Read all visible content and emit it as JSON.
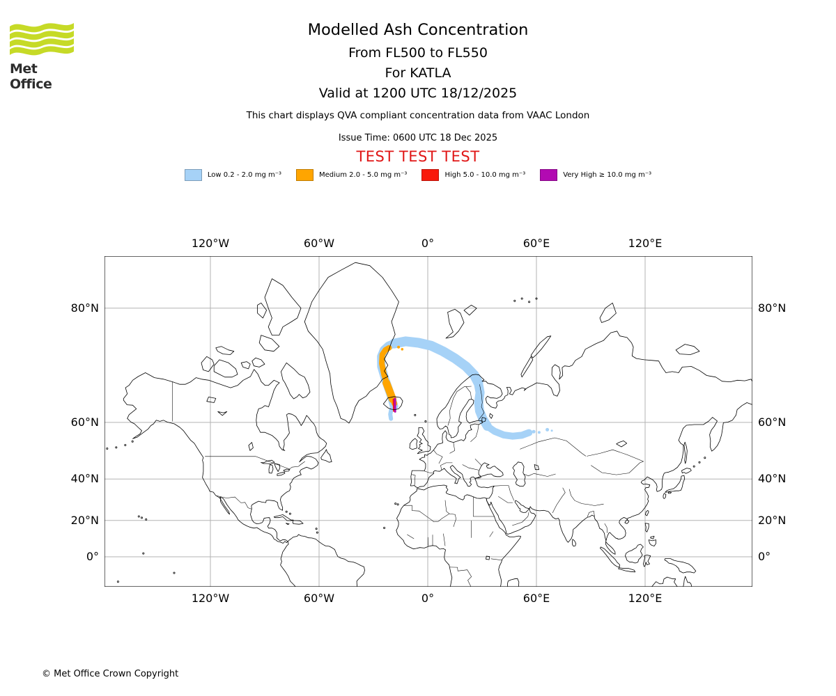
{
  "header": {
    "logo_text": "Met Office",
    "logo_color": "#c6da27",
    "title": "Modelled Ash Concentration",
    "flight_levels": "From FL500 to FL550",
    "volcano_line": "For KATLA",
    "valid_line": "Valid at 1200 UTC 18/12/2025",
    "note": "This chart displays QVA compliant concentration data from VAAC London",
    "issue_time": "Issue Time: 0600 UTC 18 Dec 2025",
    "test_banner": "TEST TEST TEST",
    "test_banner_color": "#e01616"
  },
  "legend": {
    "items": [
      {
        "level": "Low",
        "label": "Low 0.2 - 2.0 mg m⁻³",
        "color": "#a6d2f7"
      },
      {
        "level": "Medium",
        "label": "Medium 2.0 - 5.0 mg m⁻³",
        "color": "#ffa500"
      },
      {
        "level": "High",
        "label": "High 5.0 - 10.0 mg m⁻³",
        "color": "#f9190b"
      },
      {
        "level": "Very High",
        "label": "Very High  ≥  10.0 mg m⁻³",
        "color": "#b20ab2"
      }
    ]
  },
  "footer": {
    "copyright": "© Met Office Crown Copyright"
  },
  "chart_data": {
    "type": "map",
    "projection": "mercator",
    "title": "Modelled Ash Concentration",
    "volcano": {
      "name": "KATLA",
      "lat": 63.6,
      "lon": -19.0
    },
    "lon_range": [
      -178.5,
      179.2
    ],
    "lat_range": [
      -16.6,
      84.0
    ],
    "grid": {
      "lons": [
        -120,
        -60,
        0,
        60,
        120
      ],
      "lats": [
        0,
        20,
        40,
        60,
        80
      ],
      "color": "#b3b3b3",
      "on": true
    },
    "x_ticks": [
      {
        "lon": -120,
        "label": "120°W"
      },
      {
        "lon": -60,
        "label": "60°W"
      },
      {
        "lon": 0,
        "label": "0°"
      },
      {
        "lon": 60,
        "label": "60°E"
      },
      {
        "lon": 120,
        "label": "120°E"
      }
    ],
    "y_ticks": [
      {
        "lat": 80,
        "label": "80°N"
      },
      {
        "lat": 60,
        "label": "60°N"
      },
      {
        "lat": 40,
        "label": "40°N"
      },
      {
        "lat": 20,
        "label": "20°N"
      },
      {
        "lat": 0,
        "label": "0°"
      }
    ],
    "ash_bands": [
      {
        "level": "Low",
        "range": "0.2 - 2.0 mg m⁻³",
        "color": "#a6d2f7",
        "paths": [
          {
            "width": 12,
            "points": [
              [
                -18.6,
                64.2
              ],
              [
                -19.6,
                65.8
              ],
              [
                -21.3,
                67.8
              ],
              [
                -23.6,
                70.2
              ],
              [
                -25.6,
                72.4
              ],
              [
                -25.7,
                74.0
              ],
              [
                -24.2,
                75.0
              ],
              [
                -21.6,
                75.6
              ],
              [
                -18.6,
                75.9
              ]
            ]
          },
          {
            "width": 14,
            "points": [
              [
                -18.6,
                75.9
              ],
              [
                -12.1,
                76.2
              ],
              [
                -5.1,
                76.0
              ],
              [
                1.9,
                75.6
              ],
              [
                8.4,
                74.8
              ],
              [
                15.1,
                73.7
              ],
              [
                21.1,
                72.4
              ],
              [
                25.6,
                70.9
              ],
              [
                27.9,
                69.4
              ]
            ]
          },
          {
            "width": 13,
            "points": [
              [
                27.9,
                69.4
              ],
              [
                28.9,
                67.4
              ],
              [
                28.1,
                65.1
              ],
              [
                28.6,
                63.1
              ],
              [
                30.3,
                61.1
              ],
              [
                32.9,
                58.9
              ]
            ]
          },
          {
            "width": 10,
            "points": [
              [
                32.9,
                58.9
              ],
              [
                36.9,
                57.4
              ],
              [
                41.9,
                56.3
              ],
              [
                46.9,
                55.9
              ],
              [
                51.9,
                56.2
              ],
              [
                55.9,
                57.0
              ]
            ]
          },
          {
            "width": 6,
            "points": [
              [
                -20.2,
                63.4
              ],
              [
                -20.7,
                62.2
              ],
              [
                -20.3,
                61.0
              ]
            ]
          }
        ],
        "dots": [
          [
            58.5,
            57.3,
            2.5
          ],
          [
            61.5,
            57.1,
            2.0
          ],
          [
            66.0,
            57.9,
            2.5
          ],
          [
            68.5,
            57.6,
            1.5
          ]
        ]
      },
      {
        "level": "Medium",
        "range": "2.0 - 5.0 mg m⁻³",
        "color": "#ffa500",
        "paths": [
          {
            "width": 8,
            "points": [
              [
                -18.4,
                64.9
              ],
              [
                -19.9,
                66.6
              ],
              [
                -21.9,
                68.6
              ],
              [
                -24.1,
                70.9
              ],
              [
                -25.4,
                72.9
              ],
              [
                -25.1,
                74.3
              ],
              [
                -23.4,
                75.0
              ],
              [
                -21.4,
                75.3
              ]
            ]
          },
          {
            "width": 11,
            "points": [
              [
                -19.4,
                65.9
              ],
              [
                -21.1,
                67.7
              ],
              [
                -22.9,
                69.4
              ]
            ]
          }
        ],
        "dots": [
          [
            -16.1,
            75.4,
            2.0
          ],
          [
            -14.1,
            75.1,
            1.8
          ]
        ]
      },
      {
        "level": "High",
        "range": "5.0 - 10.0 mg m⁻³",
        "color": "#f9190b",
        "paths": [
          {
            "width": 3,
            "points": [
              [
                -18.8,
                65.8
              ],
              [
                -18.6,
                63.1
              ]
            ]
          }
        ],
        "dots": []
      },
      {
        "level": "Very High",
        "range": "≥ 10.0 mg m⁻³",
        "color": "#b20ab2",
        "paths": [
          {
            "width": 3,
            "points": [
              [
                -18.1,
                66.0
              ],
              [
                -18.0,
                62.9
              ]
            ]
          }
        ],
        "dots": []
      }
    ]
  }
}
